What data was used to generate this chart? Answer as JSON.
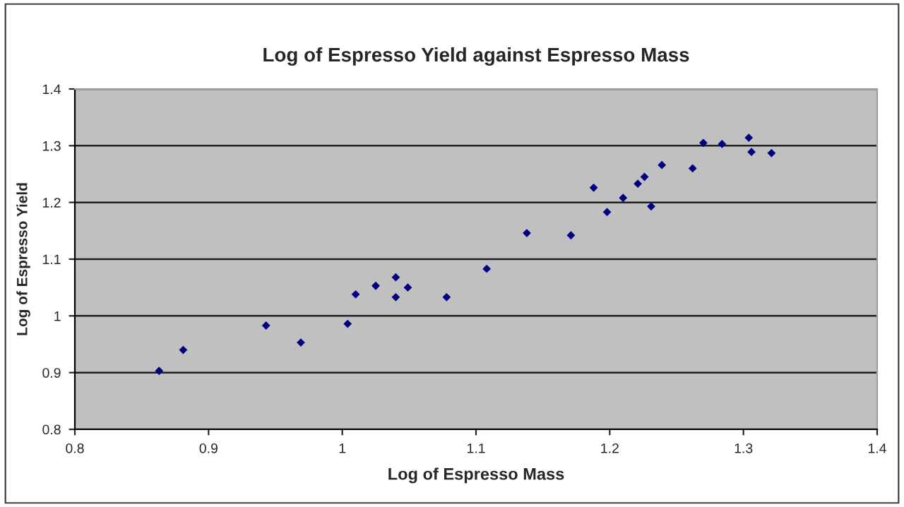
{
  "chart_data": {
    "type": "scatter",
    "title": "Log of Espresso Yield against Espresso Mass",
    "xlabel": "Log of Espresso Mass",
    "ylabel": "Log of Espresso Yield",
    "series": [
      {
        "color": "#000080",
        "x": [
          0.863,
          0.881,
          0.943,
          0.969,
          1.004,
          1.01,
          1.025,
          1.04,
          1.04,
          1.049,
          1.078,
          1.108,
          1.138,
          1.171,
          1.188,
          1.198,
          1.21,
          1.221,
          1.226,
          1.231,
          1.239,
          1.262,
          1.27,
          1.284,
          1.304,
          1.306,
          1.321
        ],
        "values": [
          0.903,
          0.94,
          0.983,
          0.953,
          0.986,
          1.038,
          1.053,
          1.068,
          1.033,
          1.05,
          1.033,
          1.083,
          1.146,
          1.142,
          1.226,
          1.183,
          1.208,
          1.233,
          1.245,
          1.193,
          1.266,
          1.26,
          1.305,
          1.303,
          1.314,
          1.289,
          1.287
        ]
      }
    ],
    "xlim": [
      0.8,
      1.4
    ],
    "ylim": [
      0.8,
      1.4
    ],
    "xticks": [
      0.8,
      0.9,
      {
        "value": 1.0,
        "label": "1"
      },
      1.1,
      1.2,
      1.3,
      1.4
    ],
    "yticks": [
      0.8,
      0.9,
      {
        "value": 1.0,
        "label": "1"
      },
      1.1,
      1.2,
      1.3,
      1.4
    ],
    "grid": "y",
    "marker": "diamond",
    "legend": false
  }
}
